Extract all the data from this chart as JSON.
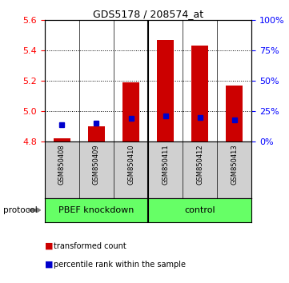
{
  "title": "GDS5178 / 208574_at",
  "samples": [
    "GSM850408",
    "GSM850409",
    "GSM850410",
    "GSM850411",
    "GSM850412",
    "GSM850413"
  ],
  "transformed_count": [
    4.82,
    4.9,
    5.19,
    5.47,
    5.43,
    5.17
  ],
  "percentile_rank": [
    4.91,
    4.92,
    4.95,
    4.97,
    4.96,
    4.94
  ],
  "ylim": [
    4.8,
    5.6
  ],
  "yticks_left": [
    4.8,
    5.0,
    5.2,
    5.4,
    5.6
  ],
  "yticks_right": [
    0,
    25,
    50,
    75,
    100
  ],
  "bar_color": "#CC0000",
  "percentile_color": "#0000CC",
  "bar_width": 0.5,
  "baseline": 4.8,
  "background_color": "#ffffff",
  "gray_color": "#D0D0D0",
  "green_color": "#66FF66",
  "legend_items": [
    "transformed count",
    "percentile rank within the sample"
  ],
  "legend_colors": [
    "#CC0000",
    "#0000CC"
  ],
  "protocol_label": "protocol",
  "group_label_1": "PBEF knockdown",
  "group_label_2": "control",
  "group_boundary": 3,
  "n_samples": 6
}
